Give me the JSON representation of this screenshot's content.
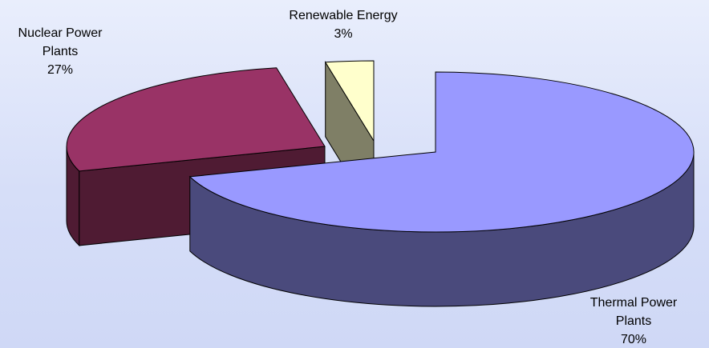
{
  "chart_data": {
    "type": "pie",
    "style": "3d-exploded",
    "title": "",
    "slices": [
      {
        "label_lines": [
          "Thermal Power",
          "Plants"
        ],
        "percent_label": "70%",
        "value": 70,
        "top_color": "#9999ff",
        "side_color": "#4a4a7c"
      },
      {
        "label_lines": [
          "Nuclear Power",
          "Plants"
        ],
        "percent_label": "27%",
        "value": 27,
        "top_color": "#993366",
        "side_color": "#4f1b33"
      },
      {
        "label_lines": [
          "Renewable Energy"
        ],
        "percent_label": "3%",
        "value": 3,
        "top_color": "#ffffcc",
        "side_color": "#7f7f66"
      }
    ],
    "legend": "none",
    "grid": false
  }
}
